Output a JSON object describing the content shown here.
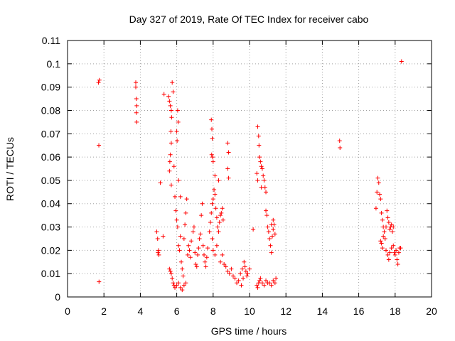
{
  "chart_data": {
    "type": "scatter",
    "title": "Day 327 of 2019, Rate Of TEC Index for receiver cabo",
    "xlabel": "GPS time / hours",
    "ylabel": "ROTI / TECUs",
    "xlim": [
      0,
      20
    ],
    "ylim": [
      0,
      0.11
    ],
    "xticks": [
      0,
      2,
      4,
      6,
      8,
      10,
      12,
      14,
      16,
      18,
      20
    ],
    "yticks": [
      0,
      0.01,
      0.02,
      0.03,
      0.04,
      0.05,
      0.06,
      0.07,
      0.08,
      0.09,
      0.1,
      0.11
    ],
    "xtick_labels": [
      "0",
      "2",
      "4",
      "6",
      "8",
      "10",
      "12",
      "14",
      "16",
      "18",
      "20"
    ],
    "ytick_labels": [
      "0",
      "0.01",
      "0.02",
      "0.03",
      "0.04",
      "0.05",
      "0.06",
      "0.07",
      "0.08",
      "0.09",
      "0.1",
      "0.11"
    ],
    "grid": true,
    "marker": "+",
    "series": [
      {
        "name": "ROTI",
        "color": "#ff0000",
        "points": [
          [
            1.7,
            0.092
          ],
          [
            1.75,
            0.093
          ],
          [
            1.72,
            0.065
          ],
          [
            1.73,
            0.0065
          ],
          [
            3.75,
            0.092
          ],
          [
            3.75,
            0.09
          ],
          [
            3.78,
            0.085
          ],
          [
            3.8,
            0.082
          ],
          [
            3.78,
            0.079
          ],
          [
            3.8,
            0.075
          ],
          [
            4.9,
            0.028
          ],
          [
            4.95,
            0.025
          ],
          [
            5.0,
            0.02
          ],
          [
            4.97,
            0.019
          ],
          [
            5.02,
            0.018
          ],
          [
            5.1,
            0.049
          ],
          [
            5.25,
            0.026
          ],
          [
            5.3,
            0.087
          ],
          [
            5.55,
            0.086
          ],
          [
            5.6,
            0.084
          ],
          [
            5.65,
            0.082
          ],
          [
            5.7,
            0.08
          ],
          [
            5.75,
            0.092
          ],
          [
            5.8,
            0.088
          ],
          [
            5.72,
            0.077
          ],
          [
            5.68,
            0.071
          ],
          [
            5.7,
            0.066
          ],
          [
            5.65,
            0.061
          ],
          [
            5.62,
            0.058
          ],
          [
            5.6,
            0.054
          ],
          [
            5.7,
            0.048
          ],
          [
            5.85,
            0.056
          ],
          [
            5.6,
            0.012
          ],
          [
            5.65,
            0.011
          ],
          [
            5.7,
            0.01
          ],
          [
            5.75,
            0.008
          ],
          [
            5.8,
            0.006
          ],
          [
            5.85,
            0.005
          ],
          [
            5.9,
            0.004
          ],
          [
            6.0,
            0.005
          ],
          [
            6.1,
            0.006
          ],
          [
            6.2,
            0.004
          ],
          [
            6.3,
            0.003
          ],
          [
            6.4,
            0.005
          ],
          [
            6.5,
            0.006
          ],
          [
            5.9,
            0.043
          ],
          [
            5.95,
            0.037
          ],
          [
            6.0,
            0.033
          ],
          [
            6.05,
            0.03
          ],
          [
            6.1,
            0.022
          ],
          [
            6.15,
            0.02
          ],
          [
            6.2,
            0.026
          ],
          [
            6.25,
            0.015
          ],
          [
            6.3,
            0.012
          ],
          [
            6.35,
            0.009
          ],
          [
            6.4,
            0.025
          ],
          [
            6.45,
            0.031
          ],
          [
            6.5,
            0.036
          ],
          [
            6.55,
            0.042
          ],
          [
            6.0,
            0.071
          ],
          [
            6.02,
            0.067
          ],
          [
            6.05,
            0.08
          ],
          [
            6.08,
            0.075
          ],
          [
            6.1,
            0.05
          ],
          [
            6.2,
            0.043
          ],
          [
            6.6,
            0.018
          ],
          [
            6.65,
            0.022
          ],
          [
            6.7,
            0.02
          ],
          [
            6.75,
            0.017
          ],
          [
            6.8,
            0.024
          ],
          [
            6.9,
            0.028
          ],
          [
            6.95,
            0.03
          ],
          [
            7.0,
            0.019
          ],
          [
            7.05,
            0.014
          ],
          [
            7.1,
            0.013
          ],
          [
            7.15,
            0.018
          ],
          [
            7.2,
            0.021
          ],
          [
            7.25,
            0.025
          ],
          [
            7.3,
            0.027
          ],
          [
            7.35,
            0.035
          ],
          [
            7.4,
            0.04
          ],
          [
            7.45,
            0.022
          ],
          [
            7.5,
            0.018
          ],
          [
            7.55,
            0.015
          ],
          [
            7.6,
            0.013
          ],
          [
            7.65,
            0.017
          ],
          [
            7.7,
            0.021
          ],
          [
            7.8,
            0.028
          ],
          [
            7.85,
            0.032
          ],
          [
            7.9,
            0.036
          ],
          [
            7.95,
            0.04
          ],
          [
            8.0,
            0.042
          ],
          [
            8.05,
            0.046
          ],
          [
            8.1,
            0.044
          ],
          [
            8.15,
            0.038
          ],
          [
            8.2,
            0.034
          ],
          [
            8.25,
            0.03
          ],
          [
            8.3,
            0.028
          ],
          [
            8.35,
            0.032
          ],
          [
            8.4,
            0.035
          ],
          [
            8.45,
            0.036
          ],
          [
            8.5,
            0.038
          ],
          [
            8.55,
            0.033
          ],
          [
            7.9,
            0.076
          ],
          [
            7.93,
            0.072
          ],
          [
            7.95,
            0.068
          ],
          [
            7.92,
            0.061
          ],
          [
            7.97,
            0.06
          ],
          [
            8.0,
            0.058
          ],
          [
            8.1,
            0.052
          ],
          [
            8.3,
            0.05
          ],
          [
            8.8,
            0.055
          ],
          [
            8.85,
            0.051
          ],
          [
            8.8,
            0.066
          ],
          [
            8.85,
            0.062
          ],
          [
            7.95,
            0.025
          ],
          [
            8.0,
            0.02
          ],
          [
            8.1,
            0.018
          ],
          [
            8.2,
            0.022
          ],
          [
            8.4,
            0.015
          ],
          [
            8.5,
            0.018
          ],
          [
            8.6,
            0.014
          ],
          [
            8.7,
            0.013
          ],
          [
            8.8,
            0.011
          ],
          [
            8.9,
            0.01
          ],
          [
            9.0,
            0.012
          ],
          [
            9.1,
            0.009
          ],
          [
            9.2,
            0.008
          ],
          [
            9.3,
            0.006
          ],
          [
            9.4,
            0.007
          ],
          [
            9.5,
            0.01
          ],
          [
            9.6,
            0.012
          ],
          [
            9.7,
            0.015
          ],
          [
            9.75,
            0.013
          ],
          [
            9.8,
            0.011
          ],
          [
            9.85,
            0.009
          ],
          [
            9.9,
            0.01
          ],
          [
            10.0,
            0.012
          ],
          [
            9.55,
            0.005
          ],
          [
            9.65,
            0.008
          ],
          [
            10.2,
            0.029
          ],
          [
            10.4,
            0.005
          ],
          [
            10.45,
            0.004
          ],
          [
            10.5,
            0.006
          ],
          [
            10.55,
            0.007
          ],
          [
            10.6,
            0.008
          ],
          [
            10.7,
            0.006
          ],
          [
            10.8,
            0.005
          ],
          [
            10.9,
            0.007
          ],
          [
            11.0,
            0.006
          ],
          [
            11.1,
            0.006
          ],
          [
            11.2,
            0.005
          ],
          [
            11.3,
            0.007
          ],
          [
            11.4,
            0.006
          ],
          [
            11.45,
            0.008
          ],
          [
            10.45,
            0.073
          ],
          [
            10.5,
            0.069
          ],
          [
            10.52,
            0.065
          ],
          [
            10.55,
            0.06
          ],
          [
            10.6,
            0.058
          ],
          [
            10.65,
            0.056
          ],
          [
            10.4,
            0.053
          ],
          [
            10.45,
            0.05
          ],
          [
            10.7,
            0.055
          ],
          [
            10.75,
            0.052
          ],
          [
            10.8,
            0.05
          ],
          [
            10.85,
            0.047
          ],
          [
            10.9,
            0.045
          ],
          [
            10.65,
            0.047
          ],
          [
            10.9,
            0.037
          ],
          [
            10.95,
            0.035
          ],
          [
            11.0,
            0.03
          ],
          [
            11.05,
            0.028
          ],
          [
            11.1,
            0.025
          ],
          [
            11.15,
            0.022
          ],
          [
            11.2,
            0.019
          ],
          [
            11.25,
            0.026
          ],
          [
            11.3,
            0.029
          ],
          [
            11.35,
            0.031
          ],
          [
            11.4,
            0.027
          ],
          [
            11.2,
            0.031
          ],
          [
            11.3,
            0.033
          ],
          [
            14.95,
            0.067
          ],
          [
            14.97,
            0.064
          ],
          [
            18.35,
            0.101
          ],
          [
            16.95,
            0.038
          ],
          [
            17.0,
            0.045
          ],
          [
            17.05,
            0.051
          ],
          [
            17.1,
            0.049
          ],
          [
            17.15,
            0.044
          ],
          [
            17.2,
            0.042
          ],
          [
            17.25,
            0.036
          ],
          [
            17.3,
            0.033
          ],
          [
            17.35,
            0.03
          ],
          [
            17.4,
            0.028
          ],
          [
            17.45,
            0.025
          ],
          [
            17.5,
            0.03
          ],
          [
            17.55,
            0.037
          ],
          [
            17.6,
            0.034
          ],
          [
            17.65,
            0.032
          ],
          [
            17.7,
            0.029
          ],
          [
            17.75,
            0.03
          ],
          [
            17.8,
            0.031
          ],
          [
            17.85,
            0.028
          ],
          [
            17.9,
            0.03
          ],
          [
            17.2,
            0.024
          ],
          [
            17.25,
            0.023
          ],
          [
            17.3,
            0.021
          ],
          [
            17.35,
            0.026
          ],
          [
            17.5,
            0.02
          ],
          [
            17.6,
            0.018
          ],
          [
            17.65,
            0.016
          ],
          [
            17.7,
            0.019
          ],
          [
            17.8,
            0.021
          ],
          [
            17.9,
            0.022
          ],
          [
            18.0,
            0.018
          ],
          [
            18.05,
            0.02
          ],
          [
            18.1,
            0.016
          ],
          [
            18.15,
            0.014
          ],
          [
            18.2,
            0.019
          ],
          [
            18.25,
            0.021
          ],
          [
            18.3,
            0.021
          ],
          [
            17.95,
            0.019
          ]
        ]
      }
    ]
  }
}
